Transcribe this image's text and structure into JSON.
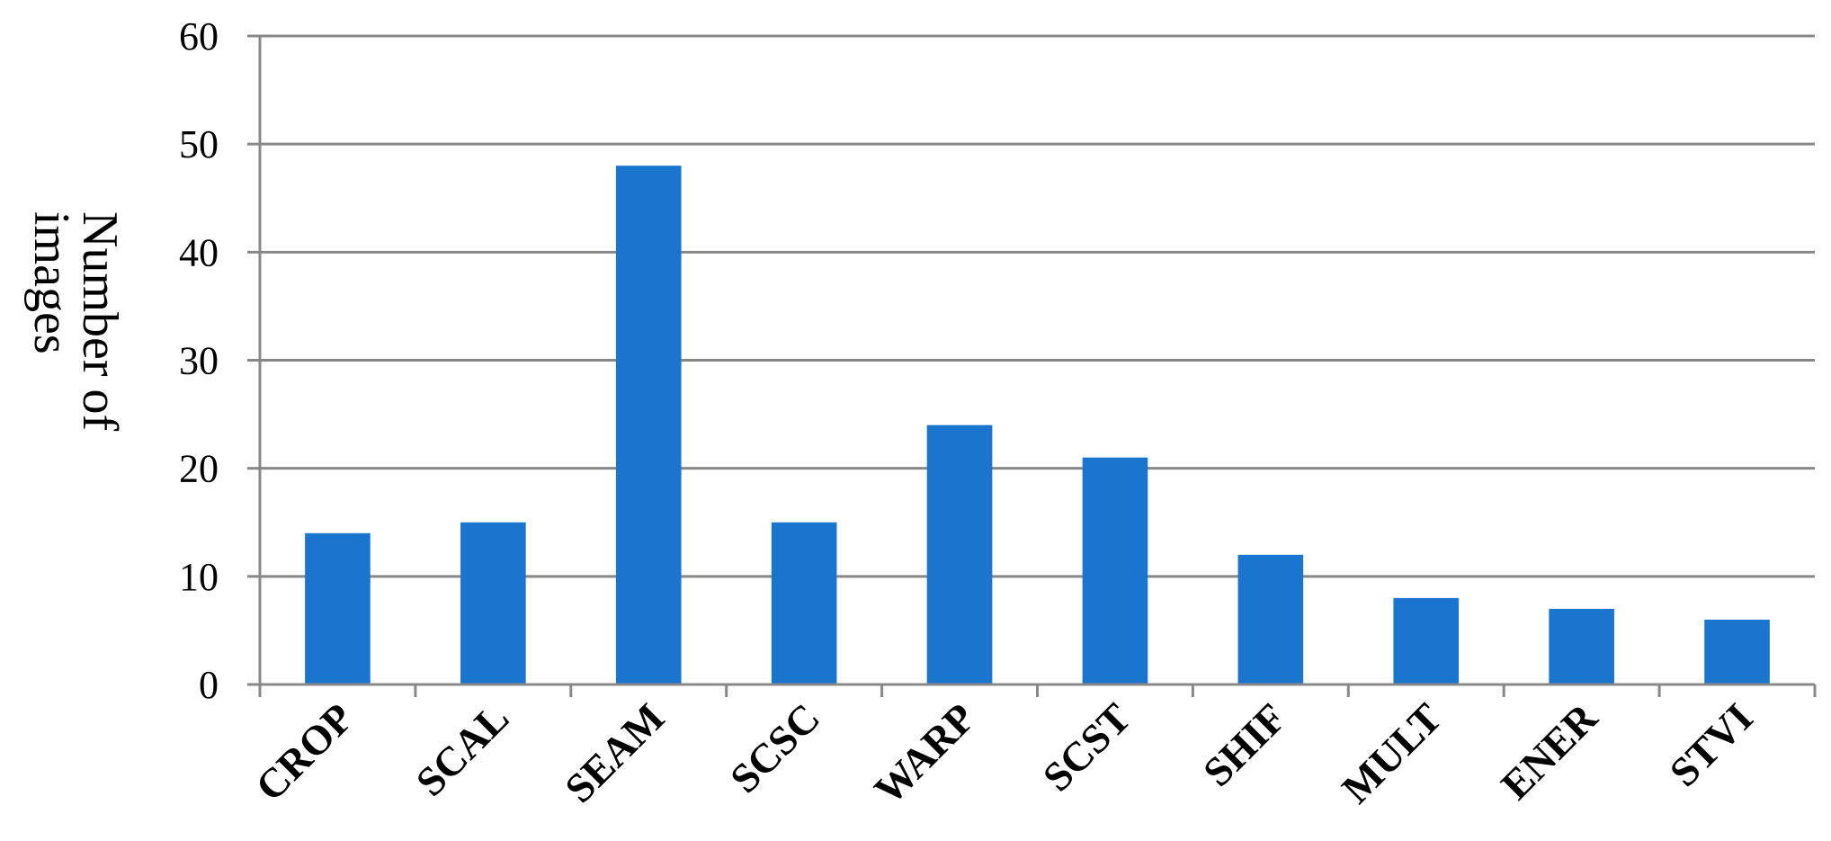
{
  "chart_data": {
    "type": "bar",
    "y_label": "Number of images",
    "categories": [
      "CROP",
      "SCAL",
      "SEAM",
      "SCSC",
      "WARP",
      "SCST",
      "SHIF",
      "MULT",
      "ENER",
      "STVI"
    ],
    "values": [
      14,
      15,
      48,
      15,
      24,
      21,
      12,
      8,
      7,
      6
    ],
    "color": "#1a75cf",
    "ylim": [
      0,
      60
    ],
    "yticks": [
      0,
      10,
      20,
      30,
      40,
      50,
      60
    ],
    "grid": true
  }
}
